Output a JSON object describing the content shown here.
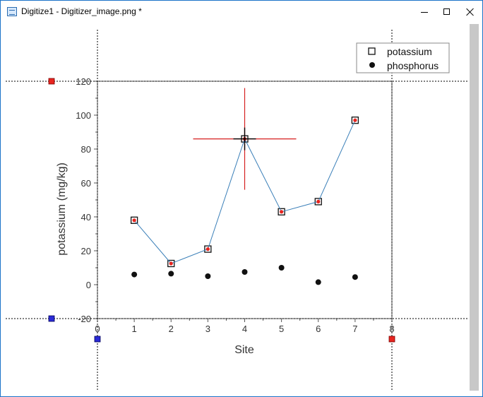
{
  "window": {
    "title": "Digitize1 - Digitizer_image.png *",
    "icon": "digitizer-window-icon"
  },
  "controls": {
    "minimize": "minimize-icon",
    "maximize": "maximize-icon",
    "close": "close-icon"
  },
  "chart_data": {
    "type": "scatter",
    "xlabel": "Site",
    "ylabel": "potassium (mg/kg)",
    "xlim": [
      0,
      8
    ],
    "ylim": [
      -20,
      120
    ],
    "xticks": [
      "0",
      "1",
      "2",
      "3",
      "4",
      "5",
      "6",
      "7",
      "8"
    ],
    "yticks": [
      "-20",
      "0",
      "20",
      "40",
      "60",
      "80",
      "100",
      "120"
    ],
    "legend_position": "top-right",
    "series": [
      {
        "name": "potassium",
        "marker": "open-square",
        "line": true,
        "x": [
          1,
          2,
          3,
          4,
          5,
          6,
          7
        ],
        "y": [
          38,
          12.5,
          21,
          86,
          43,
          49,
          97
        ]
      },
      {
        "name": "phosphorus",
        "marker": "filled-circle",
        "line": false,
        "x": [
          1,
          2,
          3,
          4,
          5,
          6,
          7
        ],
        "y": [
          6,
          6.5,
          5,
          7.5,
          10,
          1.5,
          4.5
        ]
      }
    ],
    "digitized_points": {
      "x": [
        1,
        2,
        3,
        4,
        5,
        6,
        7
      ],
      "y": [
        38,
        12.5,
        21,
        86,
        43,
        49,
        97
      ]
    },
    "crosshair": {
      "x": 4,
      "y": 86
    },
    "calibration": {
      "x": [
        0,
        8
      ],
      "y": [
        -20,
        120
      ]
    }
  },
  "colors": {
    "border": "#1c73c9",
    "digitized_line": "#3a7fb8",
    "digitized_point": "#e8251f",
    "crosshair": "#d62020",
    "x_marker": "#e8251f",
    "y_marker": "#2a2ad6"
  }
}
